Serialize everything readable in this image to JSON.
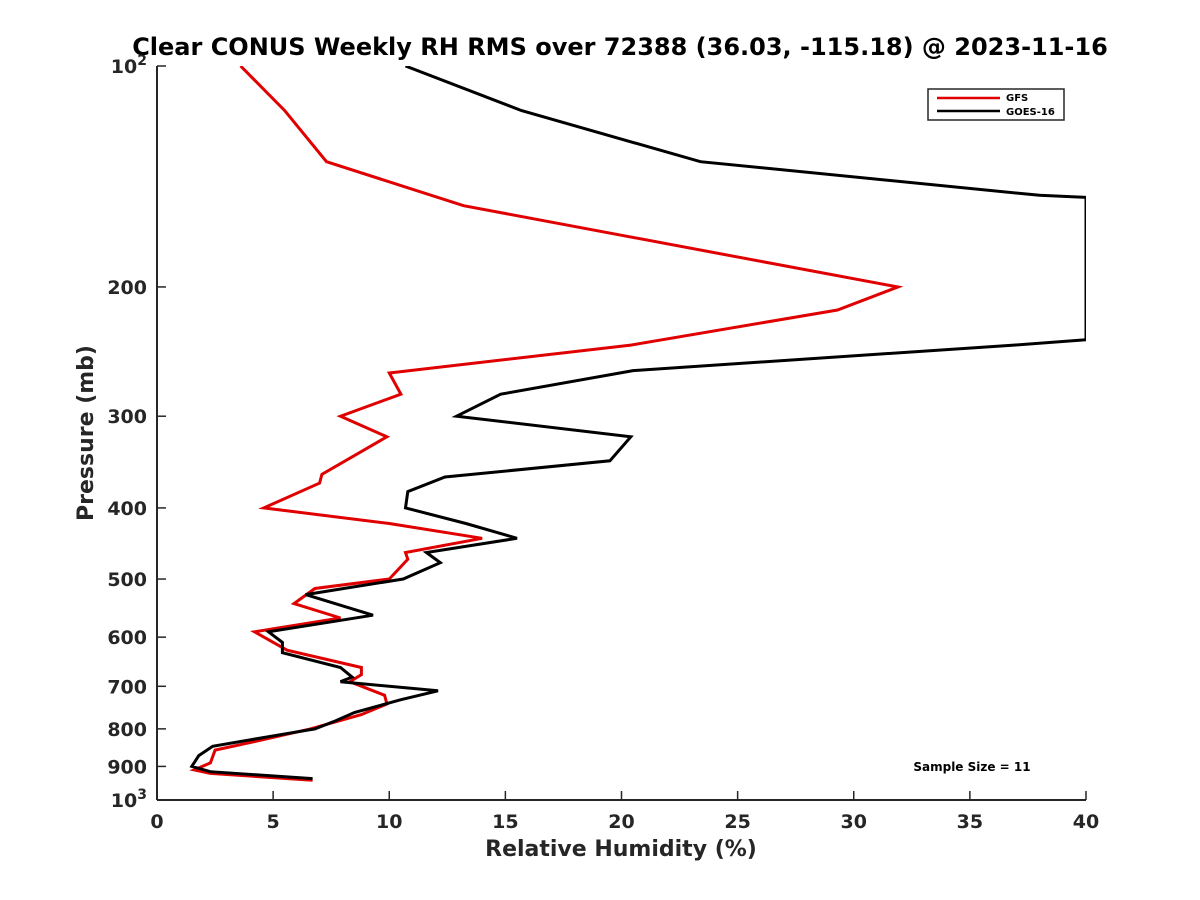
{
  "chart_data": {
    "type": "line",
    "title": "Clear CONUS Weekly RH RMS over 72388 (36.03, -115.18) @ 2023-11-16",
    "xlabel": "Relative Humidity (%)",
    "ylabel": "Pressure (mb)",
    "xlim": [
      0,
      40
    ],
    "ylim": [
      100,
      1000
    ],
    "y_scale": "log",
    "y_reversed": true,
    "x_ticks": [
      "0",
      "5",
      "10",
      "15",
      "20",
      "25",
      "30",
      "35",
      "40"
    ],
    "y_ticks": [
      {
        "value": 100,
        "base": "10",
        "exp": "2"
      },
      {
        "value": 200,
        "label": "200"
      },
      {
        "value": 300,
        "label": "300"
      },
      {
        "value": 400,
        "label": "400"
      },
      {
        "value": 500,
        "label": "500"
      },
      {
        "value": 600,
        "label": "600"
      },
      {
        "value": 700,
        "label": "700"
      },
      {
        "value": 800,
        "label": "800"
      },
      {
        "value": 900,
        "label": "900"
      },
      {
        "value": 1000,
        "base": "10",
        "exp": "3"
      }
    ],
    "legend_position": "top-right",
    "grid": false,
    "annotation": "Sample Size = 11",
    "series": [
      {
        "name": "GFS",
        "color": "#e00000",
        "points": [
          [
            3.6,
            100
          ],
          [
            5.5,
            115
          ],
          [
            7.3,
            135
          ],
          [
            13.2,
            155
          ],
          [
            31.9,
            200
          ],
          [
            29.3,
            215
          ],
          [
            20.4,
            240
          ],
          [
            10.0,
            262
          ],
          [
            10.5,
            280
          ],
          [
            7.9,
            300
          ],
          [
            9.9,
            320
          ],
          [
            7.1,
            360
          ],
          [
            7.0,
            370
          ],
          [
            4.6,
            400
          ],
          [
            10.0,
            420
          ],
          [
            14.0,
            440
          ],
          [
            10.7,
            460
          ],
          [
            10.8,
            470
          ],
          [
            10.0,
            500
          ],
          [
            6.8,
            515
          ],
          [
            5.9,
            540
          ],
          [
            7.9,
            565
          ],
          [
            4.2,
            590
          ],
          [
            5.6,
            625
          ],
          [
            8.8,
            660
          ],
          [
            8.8,
            675
          ],
          [
            8.3,
            690
          ],
          [
            9.8,
            720
          ],
          [
            9.9,
            740
          ],
          [
            8.8,
            765
          ],
          [
            6.6,
            800
          ],
          [
            4.4,
            830
          ],
          [
            2.5,
            855
          ],
          [
            2.3,
            890
          ],
          [
            1.6,
            910
          ],
          [
            2.3,
            920
          ],
          [
            6.7,
            940
          ]
        ]
      },
      {
        "name": "GOES-16",
        "color": "#000000",
        "points": [
          [
            10.7,
            100
          ],
          [
            15.7,
            115
          ],
          [
            23.4,
            135
          ],
          [
            38.0,
            150
          ],
          [
            40.0,
            151
          ],
          [
            40.0,
            236
          ],
          [
            36.9,
            240
          ],
          [
            20.5,
            260
          ],
          [
            14.8,
            280
          ],
          [
            12.9,
            300
          ],
          [
            20.4,
            320
          ],
          [
            19.5,
            345
          ],
          [
            12.4,
            363
          ],
          [
            10.8,
            380
          ],
          [
            10.7,
            400
          ],
          [
            13.3,
            420
          ],
          [
            15.5,
            440
          ],
          [
            11.6,
            460
          ],
          [
            12.2,
            475
          ],
          [
            10.6,
            500
          ],
          [
            6.4,
            525
          ],
          [
            9.3,
            560
          ],
          [
            4.8,
            590
          ],
          [
            5.4,
            610
          ],
          [
            5.4,
            630
          ],
          [
            7.9,
            660
          ],
          [
            8.4,
            680
          ],
          [
            7.9,
            690
          ],
          [
            12.1,
            710
          ],
          [
            10.5,
            730
          ],
          [
            8.5,
            760
          ],
          [
            7.7,
            780
          ],
          [
            6.8,
            800
          ],
          [
            4.8,
            820
          ],
          [
            2.4,
            845
          ],
          [
            1.8,
            870
          ],
          [
            1.5,
            900
          ],
          [
            2.3,
            915
          ],
          [
            6.7,
            935
          ]
        ]
      }
    ]
  }
}
